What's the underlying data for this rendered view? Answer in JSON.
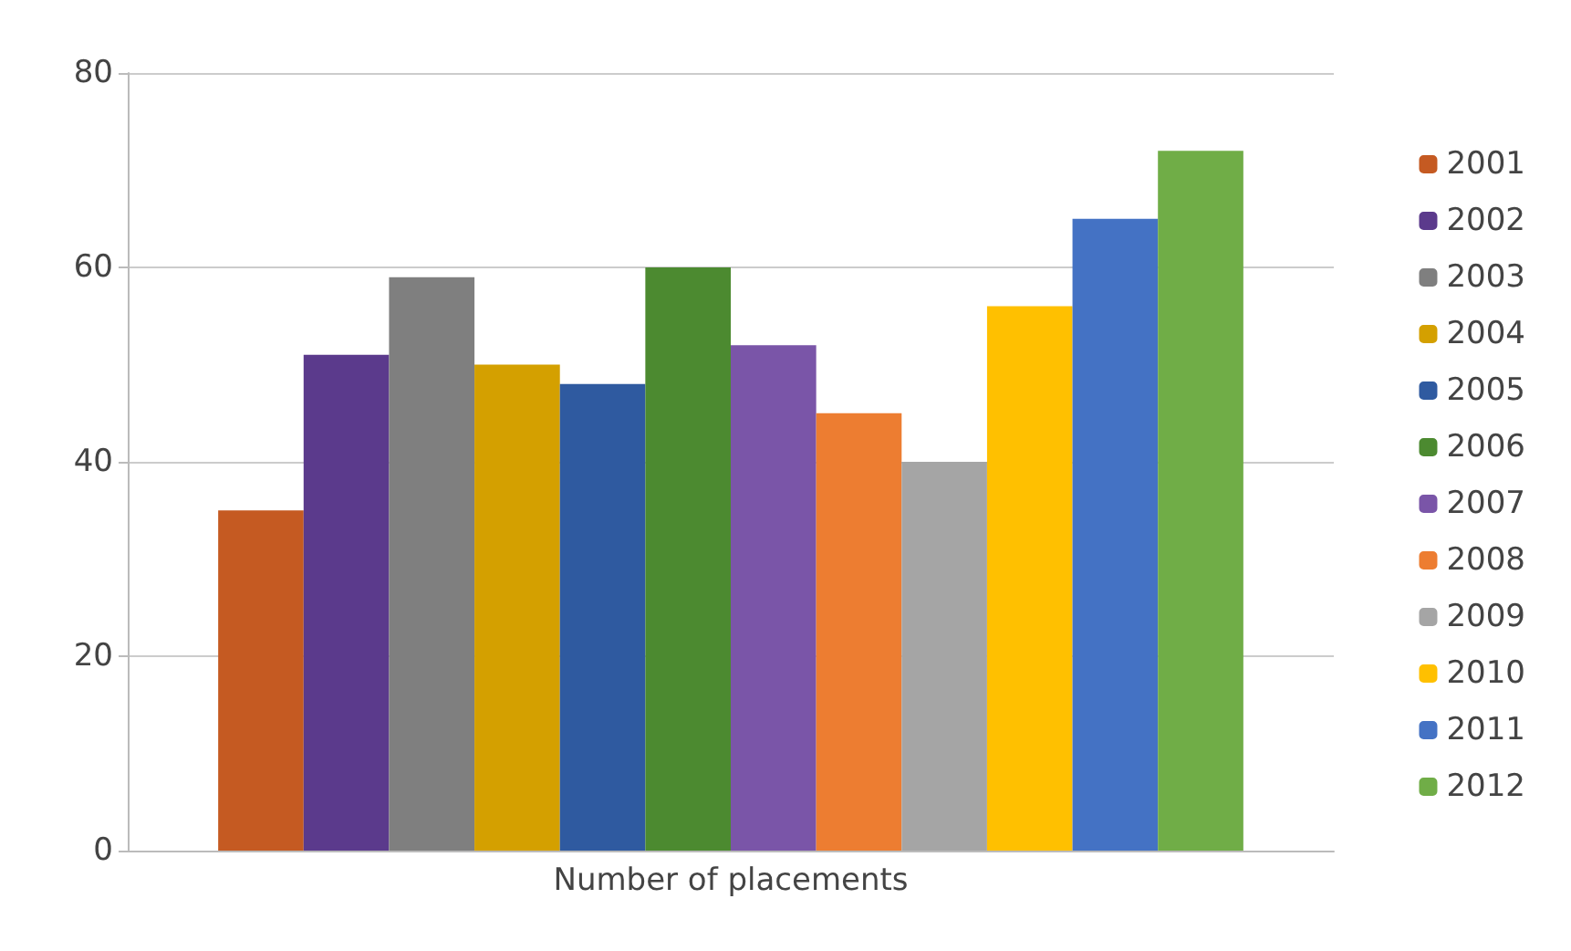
{
  "chart_data": {
    "type": "bar",
    "categories": [
      "Number of placements"
    ],
    "series": [
      {
        "name": "2001",
        "color": "#c55a22",
        "values": [
          35
        ]
      },
      {
        "name": "2002",
        "color": "#5b3a8c",
        "values": [
          51
        ]
      },
      {
        "name": "2003",
        "color": "#7f7f7f",
        "values": [
          59
        ]
      },
      {
        "name": "2004",
        "color": "#d4a000",
        "values": [
          50
        ]
      },
      {
        "name": "2005",
        "color": "#2f5aa0",
        "values": [
          48
        ]
      },
      {
        "name": "2006",
        "color": "#4c8a30",
        "values": [
          60
        ]
      },
      {
        "name": "2007",
        "color": "#7a55a8",
        "values": [
          52
        ]
      },
      {
        "name": "2008",
        "color": "#ed7d31",
        "values": [
          45
        ]
      },
      {
        "name": "2009",
        "color": "#a5a5a5",
        "values": [
          40
        ]
      },
      {
        "name": "2010",
        "color": "#ffc000",
        "values": [
          56
        ]
      },
      {
        "name": "2011",
        "color": "#4472c4",
        "values": [
          65
        ]
      },
      {
        "name": "2012",
        "color": "#70ad47",
        "values": [
          72
        ]
      }
    ],
    "ylim": [
      0,
      80
    ],
    "yticks": [
      0,
      20,
      40,
      60,
      80
    ],
    "grid": "y",
    "legend": "right"
  }
}
